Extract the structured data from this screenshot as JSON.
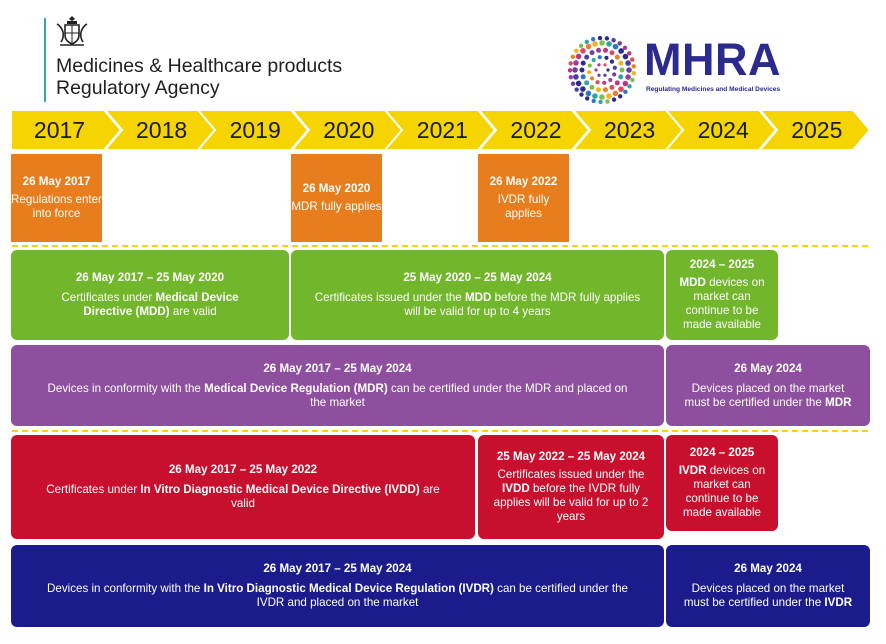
{
  "header": {
    "agency_line1": "Medicines & Healthcare products",
    "agency_line2": "Regulatory Agency",
    "logo_word": "MHRA",
    "logo_tagline": "Regulating Medicines and Medical Devices"
  },
  "years": [
    "2017",
    "2018",
    "2019",
    "2020",
    "2021",
    "2022",
    "2023",
    "2024",
    "2025"
  ],
  "milestones": [
    {
      "date": "26 May 2017",
      "text": "Regulations enter into force"
    },
    {
      "date": "26 May 2020",
      "text": "MDR fully applies"
    },
    {
      "date": "26 May 2022",
      "text": "IVDR fully applies"
    }
  ],
  "rows": {
    "mdd_cert": {
      "heading": "26 May 2017 – 25 May 2020",
      "pre": "Certificates under ",
      "bold": "Medical Device Directive",
      "post": " (MDD)",
      "tail": " are valid"
    },
    "mdd_extended": {
      "heading": "25 May 2020 – 25 May 2024",
      "pre": "Certificates issued under the ",
      "bold": "MDD",
      "post": " before the MDR fully applies will be valid for up to 4 years"
    },
    "mdd_market": {
      "heading": "2024 – 2025",
      "bold": "MDD",
      "post": " devices on market can continue to be made available"
    },
    "mdr_cert": {
      "heading": "26 May 2017 – 25 May 2024",
      "pre": "Devices in conformity with the ",
      "bold": "Medical Device Regulation (MDR)",
      "post": " can be certified under the MDR and placed on the market"
    },
    "mdr_deadline": {
      "heading": "26 May 2024",
      "pre": "Devices placed on the market must be certified under the ",
      "bold": "MDR"
    },
    "ivdd_cert": {
      "heading": "26 May 2017 – 25 May 2022",
      "pre": "Certificates under ",
      "bold": "In Vitro Diagnostic Medical Device Directive (IVDD)",
      "post": " are valid"
    },
    "ivdd_extended": {
      "heading": "25 May 2022 – 25 May 2024",
      "pre": "Certificates issued under the ",
      "bold": "IVDD",
      "post": " before the IVDR fully applies will be valid for up to 2 years"
    },
    "ivdd_market": {
      "heading": "2024 – 2025",
      "bold": "IVDR",
      "post": " devices on market can continue to be made available"
    },
    "ivdr_cert": {
      "heading": "26 May 2017 – 25 May 2024",
      "pre": "Devices in conformity with the ",
      "bold": "In Vitro Diagnostic Medical Device Regulation (IVDR)",
      "post": " can be certified under the IVDR and placed on the market"
    },
    "ivdr_deadline": {
      "heading": "26 May 2024",
      "pre": "Devices placed on the market must be certified under the ",
      "bold": "IVDR"
    }
  },
  "colors": {
    "arrow": "#f5d400",
    "orange": "#e87d1e",
    "green": "#71b62b",
    "purple": "#8e4f9e",
    "red": "#c8102e",
    "navy": "#1b1b8c",
    "brand": "#2b2a8f"
  }
}
